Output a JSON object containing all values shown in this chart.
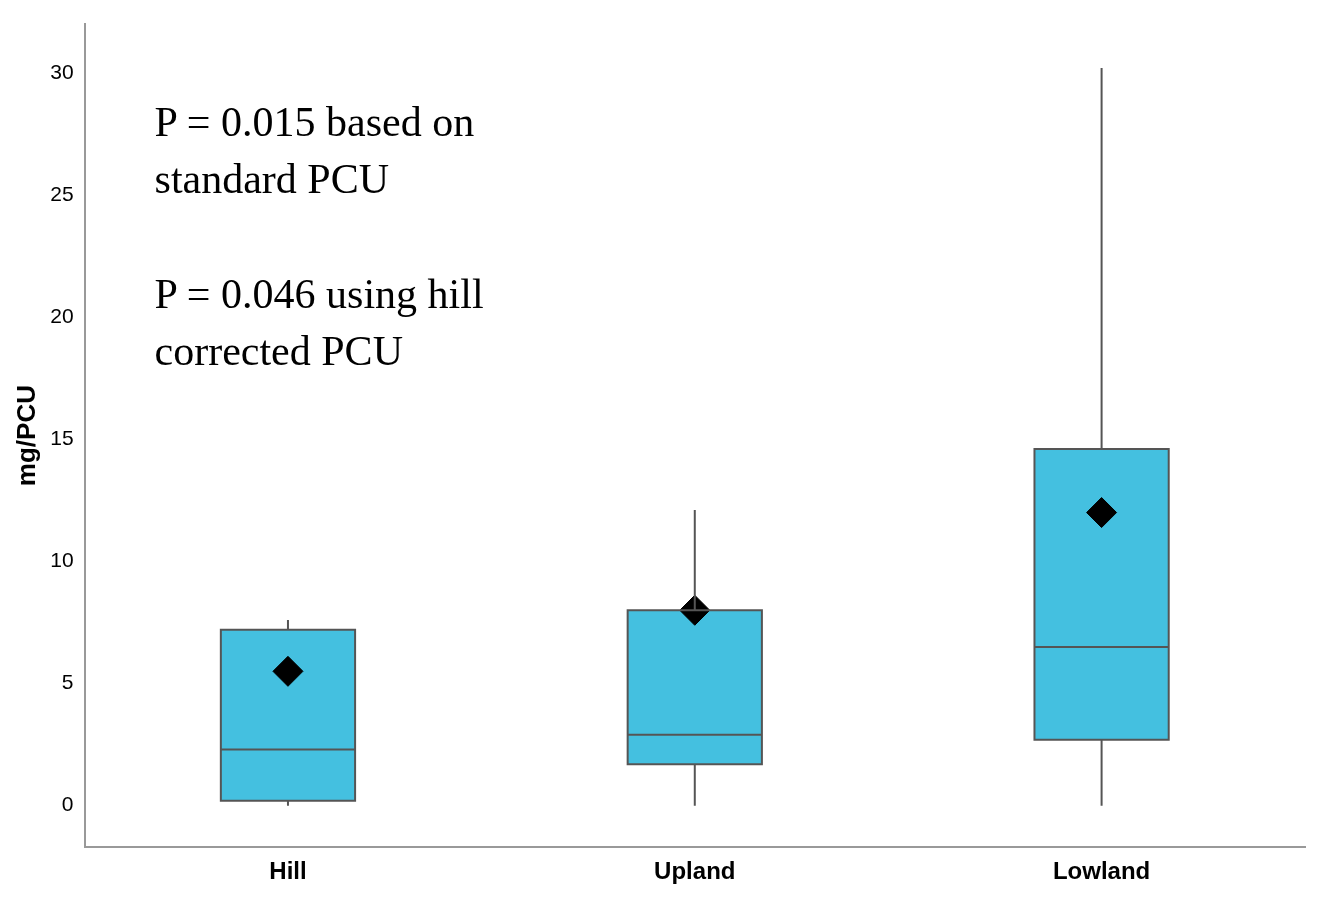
{
  "chart_data": {
    "type": "box",
    "ylabel": "mg/PCU",
    "categories": [
      "Hill",
      "Upland",
      "Lowland"
    ],
    "color": "#44c0e0",
    "marker": "diamond",
    "boxes": [
      {
        "low": 0,
        "q1": 0.2,
        "median": 2.3,
        "q3": 7.2,
        "high": 7.6,
        "mean": 5.5
      },
      {
        "low": 0,
        "q1": 1.7,
        "median": 2.9,
        "q3": 8.0,
        "high": 12.1,
        "mean": 8.0
      },
      {
        "low": 0,
        "q1": 2.7,
        "median": 6.5,
        "q3": 14.6,
        "high": 30.2,
        "mean": 12.0
      }
    ],
    "ylim": [
      -1.7,
      32
    ],
    "yticks": [
      0,
      5,
      10,
      15,
      20,
      25,
      30
    ],
    "grid": false,
    "legend": false,
    "annotations": [
      "P = 0.015 based on standard PCU",
      "P = 0.046 using hill corrected PCU"
    ]
  }
}
